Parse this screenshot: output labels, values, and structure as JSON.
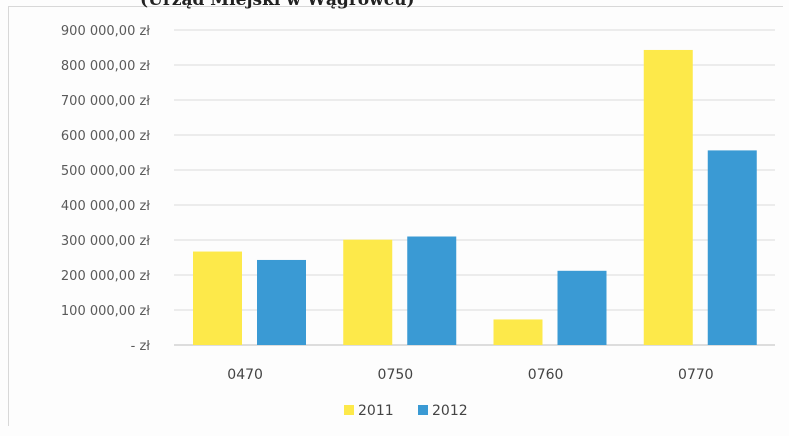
{
  "chart_data": {
    "type": "bar",
    "title": "(Urząd Miejski w Wągrowcu)",
    "categories": [
      "0470",
      "0750",
      "0760",
      "0770"
    ],
    "series": [
      {
        "name": "2011",
        "color": "#fde94a",
        "values": [
          267000,
          301000,
          73000,
          843000
        ]
      },
      {
        "name": "2012",
        "color": "#3a9ad4",
        "values": [
          243000,
          310000,
          212000,
          556000
        ]
      }
    ],
    "yticks": [
      {
        "value": 0,
        "label": "-   zł"
      },
      {
        "value": 100000,
        "label": "100 000,00 zł"
      },
      {
        "value": 200000,
        "label": "200 000,00 zł"
      },
      {
        "value": 300000,
        "label": "300 000,00 zł"
      },
      {
        "value": 400000,
        "label": "400 000,00 zł"
      },
      {
        "value": 500000,
        "label": "500 000,00 zł"
      },
      {
        "value": 600000,
        "label": "600 000,00 zł"
      },
      {
        "value": 700000,
        "label": "700 000,00 zł"
      },
      {
        "value": 800000,
        "label": "800 000,00 zł"
      },
      {
        "value": 900000,
        "label": "900 000,00 zł"
      }
    ],
    "ylim": [
      0,
      900000
    ],
    "grid": true,
    "legend_position": "bottom"
  }
}
